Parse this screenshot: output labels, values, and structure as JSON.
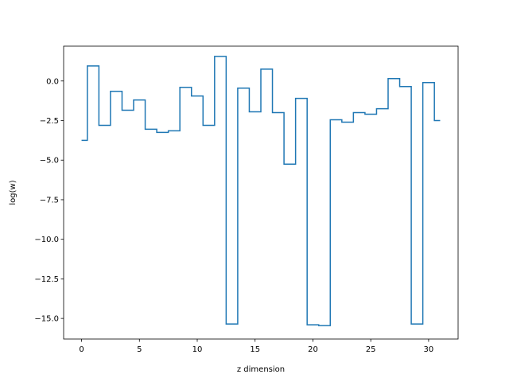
{
  "chart_data": {
    "type": "line",
    "drawstyle": "steps-mid",
    "title": "",
    "xlabel": "z dimension",
    "ylabel": "log(w)",
    "xlim": [
      -1.55,
      32.55
    ],
    "ylim": [
      -16.3,
      2.2
    ],
    "xticks": [
      0,
      5,
      10,
      15,
      20,
      25,
      30
    ],
    "yticks": [
      0.0,
      -2.5,
      -5.0,
      -7.5,
      -10.0,
      -12.5,
      -15.0
    ],
    "ytick_labels": [
      "0.0",
      "−2.5",
      "−5.0",
      "−7.5",
      "−10.0",
      "−12.5",
      "−15.0"
    ],
    "grid": false,
    "color": "#1f77b4",
    "x": [
      0,
      1,
      2,
      3,
      4,
      5,
      6,
      7,
      8,
      9,
      10,
      11,
      12,
      13,
      14,
      15,
      16,
      17,
      18,
      19,
      20,
      21,
      22,
      23,
      24,
      25,
      26,
      27,
      28,
      29,
      30,
      31
    ],
    "y": [
      -3.75,
      0.95,
      -2.8,
      -0.65,
      -1.85,
      -1.2,
      -3.05,
      -3.25,
      -3.15,
      -0.4,
      -0.95,
      -2.8,
      1.55,
      -15.35,
      -0.45,
      -1.95,
      0.75,
      -2.0,
      -5.25,
      -1.1,
      -15.4,
      -15.45,
      -2.45,
      -2.6,
      -2.0,
      -2.1,
      -1.75,
      0.15,
      -0.35,
      -15.35,
      -0.1,
      -2.5
    ]
  }
}
